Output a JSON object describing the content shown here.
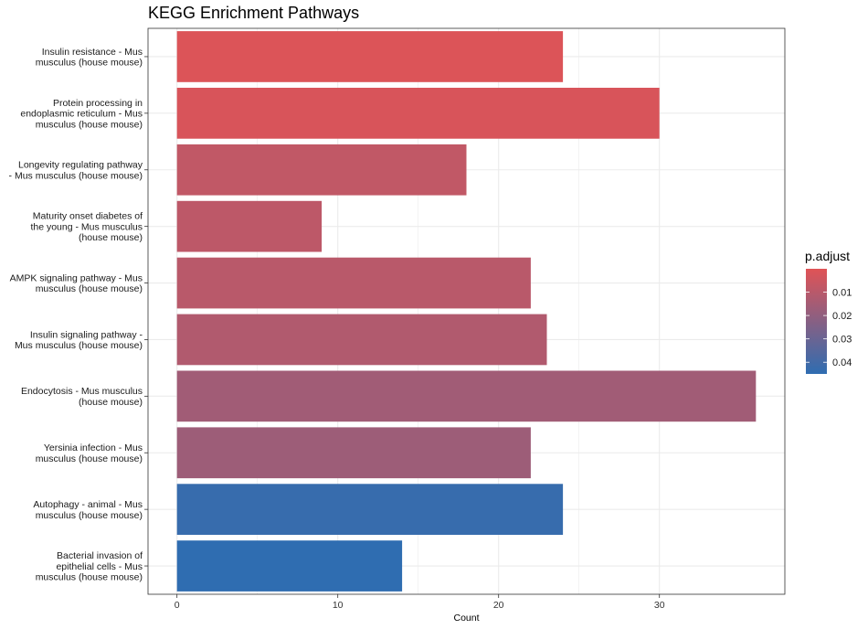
{
  "chart_data": {
    "type": "bar",
    "orientation": "horizontal",
    "title": "KEGG Enrichment Pathways",
    "xlabel": "Count",
    "ylabel": "",
    "xlim": [
      -1.8,
      37.8
    ],
    "xticks": [
      "0",
      "10",
      "20",
      "30"
    ],
    "grid": true,
    "categories": [
      "Insulin resistance - Mus musculus (house mouse)",
      "Protein processing in endoplasmic reticulum - Mus musculus (house mouse)",
      "Longevity regulating pathway - Mus musculus (house mouse)",
      "Maturity onset diabetes of the young - Mus musculus (house mouse)",
      "AMPK signaling pathway - Mus musculus (house mouse)",
      "Insulin signaling pathway - Mus musculus (house mouse)",
      "Endocytosis - Mus musculus (house mouse)",
      "Yersinia infection - Mus musculus (house mouse)",
      "Autophagy - animal - Mus musculus (house mouse)",
      "Bacterial invasion of epithelial cells - Mus musculus (house mouse)"
    ],
    "category_lines": [
      [
        "Insulin resistance - Mus",
        "musculus (house mouse)"
      ],
      [
        "Protein processing in",
        "endoplasmic reticulum - Mus",
        "musculus (house mouse)"
      ],
      [
        "Longevity regulating pathway",
        "- Mus musculus (house mouse)"
      ],
      [
        "Maturity onset diabetes of",
        "the young - Mus musculus",
        "(house mouse)"
      ],
      [
        "AMPK signaling pathway - Mus",
        "musculus (house mouse)"
      ],
      [
        "Insulin signaling pathway -",
        "Mus musculus (house mouse)"
      ],
      [
        "Endocytosis - Mus musculus",
        "(house mouse)"
      ],
      [
        "Yersinia infection - Mus",
        "musculus (house mouse)"
      ],
      [
        "Autophagy - animal - Mus",
        "musculus (house mouse)"
      ],
      [
        "Bacterial invasion of",
        "epithelial cells - Mus",
        "musculus (house mouse)"
      ]
    ],
    "values": [
      24,
      30,
      18,
      9,
      22,
      23,
      36,
      22,
      24,
      14
    ],
    "p_adjust": [
      0.001,
      0.002,
      0.008,
      0.009,
      0.01,
      0.012,
      0.016,
      0.017,
      0.043,
      0.045
    ],
    "legend": {
      "title": "p.adjust",
      "position": "right",
      "ticks": [
        "0.01",
        "0.02",
        "0.03",
        "0.04"
      ],
      "tick_values": [
        0.01,
        0.02,
        0.03,
        0.04
      ],
      "range": [
        0.0,
        0.045
      ],
      "color_low": "#E05356",
      "color_high": "#2F6DB1"
    }
  }
}
